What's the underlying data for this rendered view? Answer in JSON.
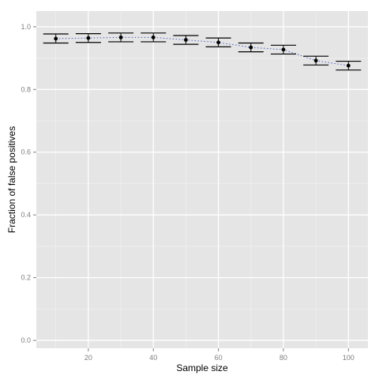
{
  "chart_data": {
    "type": "scatter",
    "title": "",
    "xlabel": "Sample size",
    "ylabel": "Fraction of false positives",
    "xlim": [
      4,
      106
    ],
    "ylim": [
      -0.025,
      1.05
    ],
    "x_ticks": [
      20,
      40,
      60,
      80,
      100
    ],
    "y_ticks": [
      0.0,
      0.2,
      0.4,
      0.6,
      0.8,
      1.0
    ],
    "y_tick_labels": [
      "0.0",
      "0.2",
      "0.4",
      "0.6",
      "0.8",
      "1.0"
    ],
    "grid": true,
    "panel_background": "#e5e5e5",
    "grid_color": "#ffffff",
    "point_color": "#000000",
    "errorbar_color": "#000000",
    "trend_line_color": "#4a5fbf",
    "trend_line_style": "dotted",
    "series": [
      {
        "x": [
          10,
          20,
          30,
          40,
          50,
          60,
          70,
          80,
          90,
          100
        ],
        "y": [
          0.962,
          0.964,
          0.966,
          0.966,
          0.958,
          0.95,
          0.934,
          0.927,
          0.892,
          0.876
        ],
        "ymin": [
          0.948,
          0.95,
          0.952,
          0.952,
          0.944,
          0.936,
          0.92,
          0.913,
          0.878,
          0.862
        ],
        "ymax": [
          0.977,
          0.978,
          0.98,
          0.98,
          0.972,
          0.964,
          0.948,
          0.941,
          0.906,
          0.89
        ]
      }
    ]
  }
}
